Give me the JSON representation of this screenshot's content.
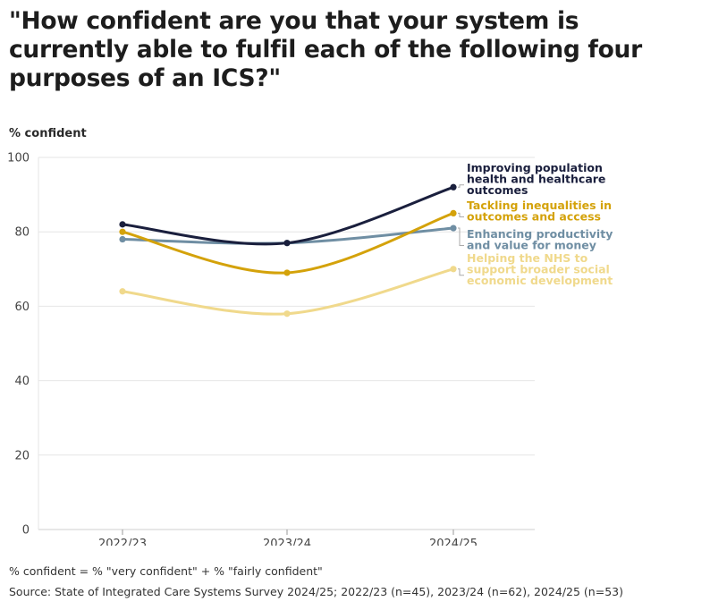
{
  "title": "\"How confident are you that your system is currently able to fulfil each of the following four purposes of an ICS?\"",
  "footnote": "% confident = % \"very confident\" + % \"fairly confident\"",
  "source": "Source: State of Integrated Care Systems Survey 2024/25; 2022/23 (n=45), 2023/24 (n=62), 2024/25 (n=53)",
  "chart_data": {
    "type": "line",
    "ylabel": "% confident",
    "xlabel": "",
    "categories": [
      "2022/23",
      "2023/24",
      "2024/25"
    ],
    "ylim": [
      0,
      100
    ],
    "yticks": [
      "0",
      "20",
      "40",
      "60",
      "80",
      "100"
    ],
    "grid": true,
    "legend": "direct labels at line ends",
    "series": [
      {
        "name": "Improving population health and healthcare outcomes",
        "label_lines": [
          "Improving population",
          "health and healthcare",
          "outcomes"
        ],
        "color": "#1a1f3d",
        "values": [
          82,
          77,
          92
        ]
      },
      {
        "name": "Tackling inequalities in outcomes and access",
        "label_lines": [
          "Tackling inequalities in",
          "outcomes and access"
        ],
        "color": "#d4a20a",
        "values": [
          80,
          69,
          85
        ]
      },
      {
        "name": "Enhancing productivity and value for money",
        "label_lines": [
          "Enhancing productivity",
          "and value for money"
        ],
        "color": "#6f8ea3",
        "values": [
          78,
          77,
          81
        ]
      },
      {
        "name": "Helping the NHS to support broader social economic development",
        "label_lines": [
          "Helping the NHS to",
          "support broader social",
          "economic development"
        ],
        "color": "#f0d98c",
        "values": [
          64,
          58,
          70
        ]
      }
    ]
  }
}
